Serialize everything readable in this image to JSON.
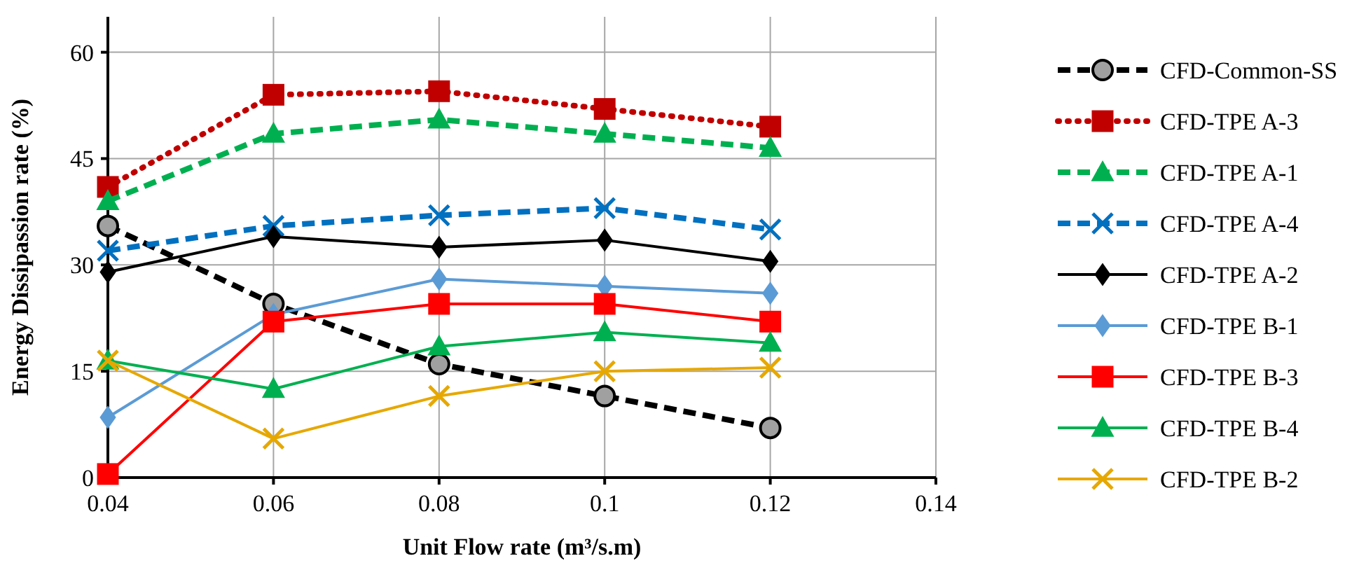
{
  "chart_data": {
    "type": "line",
    "xlabel": "Unit Flow rate (m³/s.m)",
    "ylabel": "Energy Dissipassion rate (%)",
    "x": [
      0.04,
      0.06,
      0.08,
      0.1,
      0.12
    ],
    "xlim": [
      0.04,
      0.14
    ],
    "xticks": [
      0.04,
      0.06,
      0.08,
      0.1,
      0.12,
      0.14
    ],
    "ylim": [
      0,
      65
    ],
    "yticks": [
      0,
      15,
      30,
      45,
      60
    ],
    "grid": true,
    "legend": "right",
    "series": [
      {
        "name": "CFD-Common-SS",
        "color": "#000000",
        "marker": "circle",
        "line_style": "dashed",
        "values": [
          35.5,
          24.5,
          16,
          11.5,
          7
        ]
      },
      {
        "name": "CFD-TPE A-3",
        "color": "#c00000",
        "marker": "square",
        "line_style": "dotted",
        "values": [
          41,
          54,
          54.5,
          52,
          49.5
        ]
      },
      {
        "name": "CFD-TPE A-1",
        "color": "#00b050",
        "marker": "triangle",
        "line_style": "dashed",
        "values": [
          39,
          48.5,
          50.5,
          48.5,
          46.5
        ]
      },
      {
        "name": "CFD-TPE A-4",
        "color": "#0070c0",
        "marker": "cross",
        "line_style": "dashed",
        "values": [
          32,
          35.5,
          37,
          38,
          35
        ]
      },
      {
        "name": "CFD-TPE A-2",
        "color": "#000000",
        "marker": "diamond",
        "line_style": "solid",
        "values": [
          29,
          34,
          32.5,
          33.5,
          30.5
        ]
      },
      {
        "name": "CFD-TPE B-1",
        "color": "#5b9bd5",
        "marker": "diamond",
        "line_style": "solid",
        "values": [
          8.5,
          23,
          28,
          27,
          26
        ]
      },
      {
        "name": "CFD-TPE B-3",
        "color": "#ff0000",
        "marker": "square",
        "line_style": "solid",
        "values": [
          0.5,
          22,
          24.5,
          24.5,
          22
        ]
      },
      {
        "name": "CFD-TPE B-4",
        "color": "#00b050",
        "marker": "triangle",
        "line_style": "solid",
        "values": [
          16.5,
          12.5,
          18.5,
          20.5,
          19
        ]
      },
      {
        "name": "CFD-TPE B-2",
        "color": "#e6a800",
        "marker": "cross",
        "line_style": "solid",
        "values": [
          16.5,
          5.5,
          11.5,
          15,
          15.5
        ]
      }
    ]
  }
}
